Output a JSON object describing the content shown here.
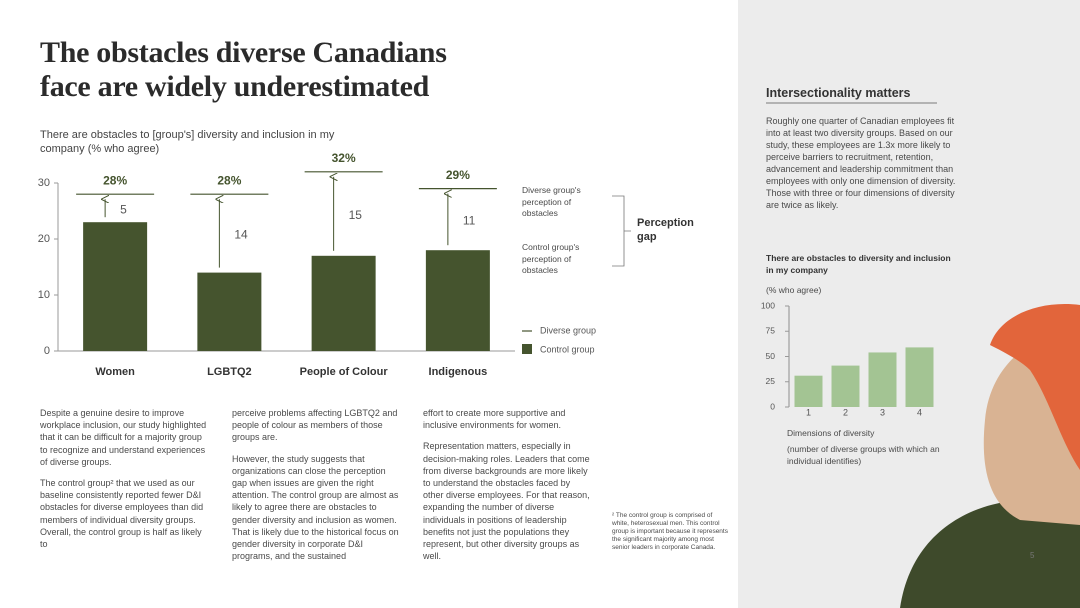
{
  "title": {
    "lines": [
      "The obstacles diverse Canadians",
      "face are widely underestimated"
    ]
  },
  "chart_data": [
    {
      "type": "bar",
      "title": "There are obstacles to [group's] diversity and inclusion in my company (% who agree)",
      "categories": [
        "Women",
        "LGBTQ2",
        "People of Colour",
        "Indigenous"
      ],
      "series": [
        {
          "name": "Diverse group",
          "mark": "line",
          "color": "#45542e",
          "values": [
            28,
            28,
            32,
            29
          ],
          "value_labels": [
            "28%",
            "28%",
            "32%",
            "29%"
          ]
        },
        {
          "name": "Control group",
          "mark": "bar",
          "color": "#45542e",
          "values": [
            23,
            14,
            17,
            18
          ]
        }
      ],
      "gaps": [
        5,
        14,
        15,
        11
      ],
      "annotations": [
        "Diverse group's perception of obstacles",
        "Control group's perception of obstacles",
        "Perception gap"
      ],
      "ylim": [
        0,
        30
      ],
      "yticks": [
        0,
        10,
        20,
        30
      ],
      "grid": false
    },
    {
      "type": "bar",
      "title": "There are obstacles to diversity and inclusion in my company",
      "subtitle": "(% who agree)",
      "categories": [
        "1",
        "2",
        "3",
        "4"
      ],
      "values": [
        31,
        41,
        54,
        59
      ],
      "color": "#a3c493",
      "xlabel": "Dimensions of diversity",
      "xlabel_note": "(number of diverse groups with which an individual identifies)",
      "ylim": [
        0,
        100
      ],
      "yticks": [
        0,
        25,
        50,
        75,
        100
      ],
      "grid": false
    }
  ],
  "body": {
    "columns": [
      [
        "Despite a genuine desire to improve workplace inclusion, our study highlighted that it can be difficult for a majority group to recognize and understand experiences of diverse groups.",
        "The control group² that we used as our baseline consistently reported fewer D&I obstacles for diverse employees than did members of individual diversity groups. Overall, the control group is half as likely to"
      ],
      [
        "perceive problems affecting LGBTQ2 and people of colour as members of those groups are.",
        "However, the study suggests that organizations can close the perception gap when issues are given the right attention. The control group are almost as likely to agree there are obstacles to gender diversity and inclusion as women. That is likely due to the historical focus on gender diversity in corporate D&I programs, and the sustained"
      ],
      [
        "effort to create more supportive and inclusive environments for women.",
        "Representation matters, especially in decision-making roles. Leaders that come from diverse backgrounds are more likely to understand the obstacles faced by other diverse employees. For that reason, expanding the number of diverse individuals in positions of leadership benefits not just the populations they represent, but other diversity groups as well."
      ]
    ],
    "footnote": "² The control group is comprised of white, heterosexual men. This control group is important because it represents the significant majority among most senior leaders in corporate Canada."
  },
  "sidebar": {
    "heading": "Intersectionality matters",
    "text": "Roughly one quarter of Canadian employees fit into at least two diversity groups. Based on our study, these employees are 1.3x more likely to perceive barriers to recruitment, retention, advancement and leadership commitment than employees with only one dimension of diversity. Those with three or four dimensions of diversity are twice as likely."
  },
  "page_number": "5"
}
